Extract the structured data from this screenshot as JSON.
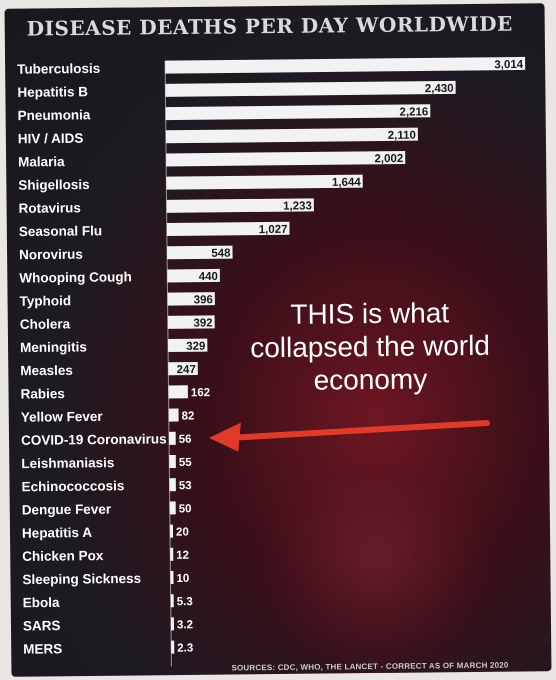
{
  "chart_data": {
    "type": "bar",
    "orientation": "horizontal",
    "title": "DISEASE DEATHS PER DAY WORLDWIDE",
    "categories": [
      "Tuberculosis",
      "Hepatitis B",
      "Pneumonia",
      "HIV / AIDS",
      "Malaria",
      "Shigellosis",
      "Rotavirus",
      "Seasonal Flu",
      "Norovirus",
      "Whooping Cough",
      "Typhoid",
      "Cholera",
      "Meningitis",
      "Measles",
      "Rabies",
      "Yellow Fever",
      "COVID-19 Coronavirus",
      "Leishmaniasis",
      "Echinococcosis",
      "Dengue Fever",
      "Hepatitis A",
      "Chicken Pox",
      "Sleeping Sickness",
      "Ebola",
      "SARS",
      "MERS"
    ],
    "values": [
      3014,
      2430,
      2216,
      2110,
      2002,
      1644,
      1233,
      1027,
      548,
      440,
      396,
      392,
      329,
      247,
      162,
      82,
      56,
      55,
      53,
      50,
      20,
      12,
      10,
      5.3,
      3.2,
      2.3
    ],
    "value_labels": [
      "3,014",
      "2,430",
      "2,216",
      "2,110",
      "2,002",
      "1,644",
      "1,233",
      "1,027",
      "548",
      "440",
      "396",
      "392",
      "329",
      "247",
      "162",
      "82",
      "56",
      "55",
      "53",
      "50",
      "20",
      "12",
      "10",
      "5.3",
      "3.2",
      "2.3"
    ],
    "xlim": [
      0,
      3014
    ],
    "grid": false,
    "legend": "none",
    "annotation": {
      "lines": [
        "THIS is what",
        "collapsed the world",
        "economy"
      ],
      "arrow_target": "COVID-19 Coronavirus",
      "arrow_color": "#e03a2a"
    },
    "sources": "SOURCES: CDC, WHO, THE LANCET - CORRECT AS OF MARCH 2020"
  },
  "colors": {
    "bar": "#f2f2f2",
    "background": "#1e1a22",
    "title": "#d8dae2",
    "arrow": "#e03a2a"
  }
}
